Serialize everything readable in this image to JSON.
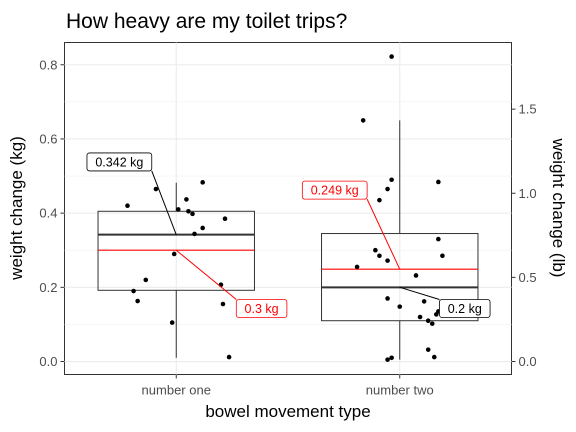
{
  "chart_data": {
    "type": "boxplot",
    "title": "How heavy are my toilet trips?",
    "xlabel": "bowel movement type",
    "ylabel": "weight change (kg)",
    "ylabel_right": "weight change (lb)",
    "categories": [
      "number one",
      "number two"
    ],
    "ylim": [
      -0.035,
      0.86
    ],
    "yticks": [
      0.0,
      0.2,
      0.4,
      0.6,
      0.8
    ],
    "ytick_labels": [
      "0.0",
      "0.2",
      "0.4",
      "0.6",
      "0.8"
    ],
    "yticks_right": [
      0.0,
      0.5,
      1.0,
      1.5
    ],
    "ytick_right_labels": [
      "0.0",
      "0.5",
      "1.0",
      "1.5"
    ],
    "grid": true,
    "boxes": [
      {
        "category": "number one",
        "min": 0.01,
        "q1": 0.192,
        "median": 0.342,
        "q3": 0.405,
        "max": 0.482,
        "mean": 0.3
      },
      {
        "category": "number two",
        "min": 0.005,
        "q1": 0.11,
        "median": 0.2,
        "q3": 0.345,
        "max": 0.65,
        "mean": 0.249
      }
    ],
    "points": [
      {
        "category": "number one",
        "jitter": 0.13,
        "y": 0.483
      },
      {
        "category": "number one",
        "jitter": -0.1,
        "y": 0.465
      },
      {
        "category": "number one",
        "jitter": 0.05,
        "y": 0.437
      },
      {
        "category": "number one",
        "jitter": -0.24,
        "y": 0.42
      },
      {
        "category": "number one",
        "jitter": 0.01,
        "y": 0.41
      },
      {
        "category": "number one",
        "jitter": 0.06,
        "y": 0.405
      },
      {
        "category": "number one",
        "jitter": 0.08,
        "y": 0.398
      },
      {
        "category": "number one",
        "jitter": 0.24,
        "y": 0.385
      },
      {
        "category": "number one",
        "jitter": 0.13,
        "y": 0.36
      },
      {
        "category": "number one",
        "jitter": 0.09,
        "y": 0.344
      },
      {
        "category": "number one",
        "jitter": -0.01,
        "y": 0.29
      },
      {
        "category": "number one",
        "jitter": -0.15,
        "y": 0.22
      },
      {
        "category": "number one",
        "jitter": 0.22,
        "y": 0.207
      },
      {
        "category": "number one",
        "jitter": -0.21,
        "y": 0.19
      },
      {
        "category": "number one",
        "jitter": -0.19,
        "y": 0.163
      },
      {
        "category": "number one",
        "jitter": 0.23,
        "y": 0.155
      },
      {
        "category": "number one",
        "jitter": -0.02,
        "y": 0.105
      },
      {
        "category": "number one",
        "jitter": 0.26,
        "y": 0.012
      },
      {
        "category": "number two",
        "jitter": -0.04,
        "y": 0.822
      },
      {
        "category": "number two",
        "jitter": -0.18,
        "y": 0.65
      },
      {
        "category": "number two",
        "jitter": -0.04,
        "y": 0.49
      },
      {
        "category": "number two",
        "jitter": 0.19,
        "y": 0.484
      },
      {
        "category": "number two",
        "jitter": -0.06,
        "y": 0.465
      },
      {
        "category": "number two",
        "jitter": -0.1,
        "y": 0.435
      },
      {
        "category": "number two",
        "jitter": 0.19,
        "y": 0.33
      },
      {
        "category": "number two",
        "jitter": -0.12,
        "y": 0.3
      },
      {
        "category": "number two",
        "jitter": -0.1,
        "y": 0.285
      },
      {
        "category": "number two",
        "jitter": 0.21,
        "y": 0.285
      },
      {
        "category": "number two",
        "jitter": -0.06,
        "y": 0.272
      },
      {
        "category": "number two",
        "jitter": -0.21,
        "y": 0.255
      },
      {
        "category": "number two",
        "jitter": 0.08,
        "y": 0.232
      },
      {
        "category": "number two",
        "jitter": -0.06,
        "y": 0.17
      },
      {
        "category": "number two",
        "jitter": 0.12,
        "y": 0.162
      },
      {
        "category": "number two",
        "jitter": 0.0,
        "y": 0.148
      },
      {
        "category": "number two",
        "jitter": 0.19,
        "y": 0.135
      },
      {
        "category": "number two",
        "jitter": 0.1,
        "y": 0.12
      },
      {
        "category": "number two",
        "jitter": 0.14,
        "y": 0.11
      },
      {
        "category": "number two",
        "jitter": 0.16,
        "y": 0.102
      },
      {
        "category": "number two",
        "jitter": 0.18,
        "y": 0.127
      },
      {
        "category": "number two",
        "jitter": 0.14,
        "y": 0.032
      },
      {
        "category": "number two",
        "jitter": 0.17,
        "y": 0.012
      },
      {
        "category": "number two",
        "jitter": -0.04,
        "y": 0.01
      },
      {
        "category": "number two",
        "jitter": -0.06,
        "y": 0.005
      }
    ],
    "annotations": [
      {
        "text": "0.342 kg",
        "kind": "median",
        "color": "#000000",
        "category": "number one",
        "y": 0.342,
        "label_y": 0.538,
        "label_offset": -0.28
      },
      {
        "text": "0.3 kg",
        "kind": "mean",
        "color": "#ff0000",
        "category": "number one",
        "y": 0.3,
        "label_y": 0.143,
        "label_offset": 0.42
      },
      {
        "text": "0.249 kg",
        "kind": "mean",
        "color": "#ff0000",
        "category": "number two",
        "y": 0.249,
        "label_y": 0.462,
        "label_offset": -0.32
      },
      {
        "text": "0.2 kg",
        "kind": "median",
        "color": "#000000",
        "category": "number two",
        "y": 0.2,
        "label_y": 0.143,
        "label_offset": 0.32
      }
    ],
    "mean_color": "#ff0000",
    "median_color": "#333333"
  }
}
